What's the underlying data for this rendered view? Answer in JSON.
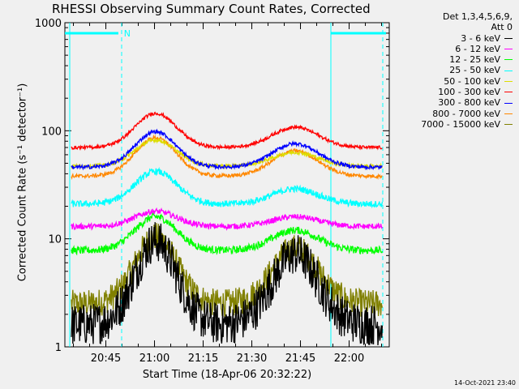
{
  "chart_data": {
    "type": "line",
    "title": "RHESSI Observing Summary Count Rates, Corrected",
    "xlabel": "Start Time (18-Apr-06 20:32:22)",
    "ylabel": "Corrected Count Rate (s⁻¹ detector⁻¹)",
    "yscale": "log",
    "ylim": [
      1,
      1000
    ],
    "xlim_minutes": [
      0,
      100
    ],
    "x_ticks": [
      {
        "label": "20:45",
        "minute": 12.63
      },
      {
        "label": "21:00",
        "minute": 27.63
      },
      {
        "label": "21:15",
        "minute": 42.63
      },
      {
        "label": "21:30",
        "minute": 57.63
      },
      {
        "label": "21:45",
        "minute": 72.63
      },
      {
        "label": "22:00",
        "minute": 87.63
      }
    ],
    "y_ticks": [
      {
        "label": "1",
        "value": 1
      },
      {
        "label": "10",
        "value": 10
      },
      {
        "label": "100",
        "value": 100
      },
      {
        "label": "1000",
        "value": 1000
      }
    ],
    "night_markers_minutes": [
      17.5,
      82.0
    ],
    "data_gap_end_minute": 2.0,
    "data_end_minute": 98.0,
    "saa_text": "N",
    "legend_header": [
      "Det 1,3,4,5,6,9,",
      "Att 0"
    ],
    "series": [
      {
        "name": "3 - 6 keV",
        "color": "#000000",
        "peak_minutes": [
          28,
          71
        ],
        "values_at_peaks": [
          9.5,
          7.2
        ],
        "baseline": 1.6,
        "noise": 0.45
      },
      {
        "name": "6 - 12 keV",
        "color": "#ff00ff",
        "peak_minutes": [
          28,
          71
        ],
        "values_at_peaks": [
          18,
          16
        ],
        "baseline": 13,
        "noise": 0.06
      },
      {
        "name": "12 - 25 keV",
        "color": "#00ff00",
        "peak_minutes": [
          28,
          71
        ],
        "values_at_peaks": [
          16,
          12
        ],
        "baseline": 7.8,
        "noise": 0.08
      },
      {
        "name": "25 - 50 keV",
        "color": "#00ffff",
        "peak_minutes": [
          28,
          71
        ],
        "values_at_peaks": [
          42,
          29
        ],
        "baseline": 21,
        "noise": 0.07
      },
      {
        "name": "50 - 100 keV",
        "color": "#dddd00",
        "peak_minutes": [
          28,
          71
        ],
        "values_at_peaks": [
          82,
          63
        ],
        "baseline": 47,
        "noise": 0.04
      },
      {
        "name": "100 - 300 keV",
        "color": "#ff0000",
        "peak_minutes": [
          28,
          71
        ],
        "values_at_peaks": [
          145,
          108
        ],
        "baseline": 70,
        "noise": 0.035
      },
      {
        "name": "300 - 800 keV",
        "color": "#0000ff",
        "peak_minutes": [
          28,
          71
        ],
        "values_at_peaks": [
          98,
          76
        ],
        "baseline": 46,
        "noise": 0.04
      },
      {
        "name": "800 - 7000 keV",
        "color": "#ff8800",
        "peak_minutes": [
          28,
          71
        ],
        "values_at_peaks": [
          86,
          65
        ],
        "baseline": 38,
        "noise": 0.04
      },
      {
        "name": "7000 - 15000 keV",
        "color": "#808000",
        "peak_minutes": [
          28,
          71
        ],
        "values_at_peaks": [
          10.5,
          8.2
        ],
        "baseline": 2.5,
        "noise": 0.3
      }
    ]
  },
  "footer": {
    "timestamp": "14-Oct-2021 23:40"
  }
}
